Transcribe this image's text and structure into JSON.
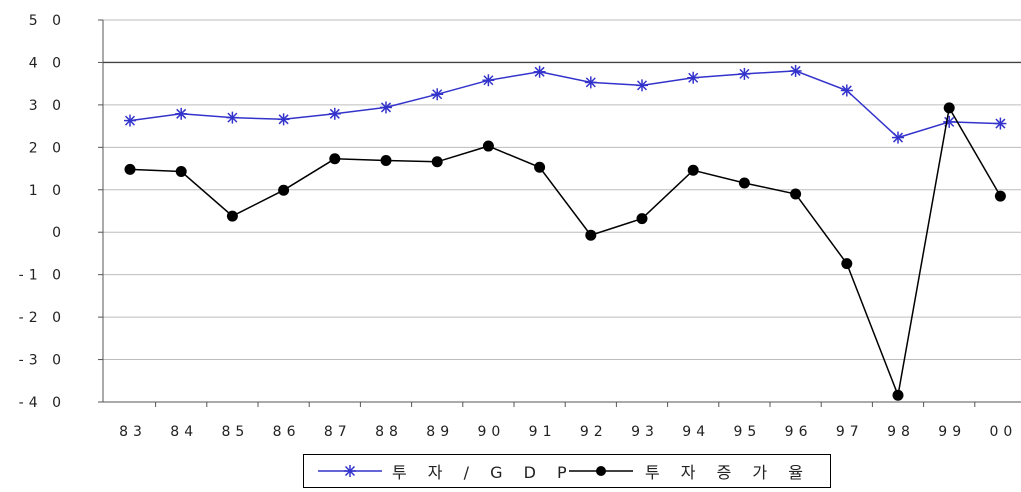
{
  "chart_data": {
    "type": "line",
    "categories": [
      "83",
      "84",
      "85",
      "86",
      "87",
      "88",
      "89",
      "90",
      "91",
      "92",
      "93",
      "94",
      "95",
      "96",
      "97",
      "98",
      "99",
      "00"
    ],
    "ylim": [
      -40,
      50
    ],
    "yticks": [
      -40,
      -30,
      -20,
      -10,
      0,
      10,
      20,
      30,
      40,
      50
    ],
    "ytick_labels": [
      "-4 0",
      "-3 0",
      "-2 0",
      "-1 0",
      "0",
      "1 0",
      "2 0",
      "3 0",
      "4 0",
      "5 0"
    ],
    "grid": true,
    "legend_position": "bottom",
    "series": [
      {
        "name": "투 자 / G D P",
        "color": "#3333cc",
        "marker": "asterisk",
        "values": [
          26.3,
          27.9,
          27.0,
          26.6,
          27.9,
          29.4,
          32.5,
          35.8,
          37.8,
          35.3,
          34.6,
          36.4,
          37.3,
          38.0,
          33.4,
          22.3,
          26.0,
          25.6
        ]
      },
      {
        "name": "투 자 증 가 율",
        "color": "#000000",
        "marker": "circle",
        "values": [
          14.8,
          14.3,
          3.8,
          9.9,
          17.3,
          16.9,
          16.6,
          20.3,
          15.3,
          -0.7,
          3.2,
          14.6,
          11.6,
          9.0,
          -7.4,
          -38.4,
          29.3,
          8.5
        ]
      }
    ]
  }
}
